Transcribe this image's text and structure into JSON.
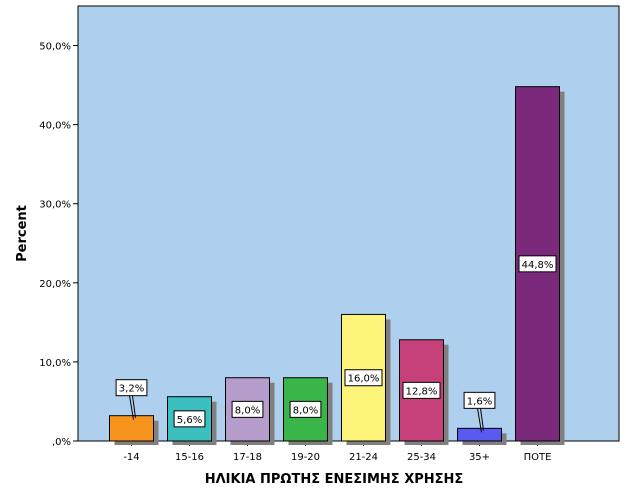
{
  "chart_data": {
    "type": "bar",
    "categories": [
      "-14",
      "15-16",
      "17-18",
      "19-20",
      "21-24",
      "25-34",
      "35+",
      "ΠΟΤΕ"
    ],
    "values": [
      3.2,
      5.6,
      8.0,
      8.0,
      16.0,
      12.8,
      1.6,
      44.8
    ],
    "data_labels": [
      "3,2%",
      "5,6%",
      "8,0%",
      "8,0%",
      "16,0%",
      "12,8%",
      "1,6%",
      "44,8%"
    ],
    "colors": [
      "#f7941d",
      "#3bbfbf",
      "#b59ccb",
      "#3ab54a",
      "#fdf57a",
      "#c6417a",
      "#5a5af0",
      "#7b2a7b"
    ],
    "xlabel": "ΗΛΙΚΙΑ ΠΡΩΤΗΣ ΕΝΕΣΙΜΗΣ ΧΡΗΣΗΣ",
    "ylabel": "Percent",
    "ylim": [
      0,
      55
    ],
    "yticks": [
      0,
      10,
      20,
      30,
      40,
      50
    ],
    "ytick_labels": [
      ",0%",
      "10,0%",
      "20,0%",
      "30,0%",
      "40,0%",
      "50,0%"
    ],
    "plot_background": "#aecfee",
    "shadow_color": "#808080",
    "grid": false,
    "legend": "none"
  }
}
